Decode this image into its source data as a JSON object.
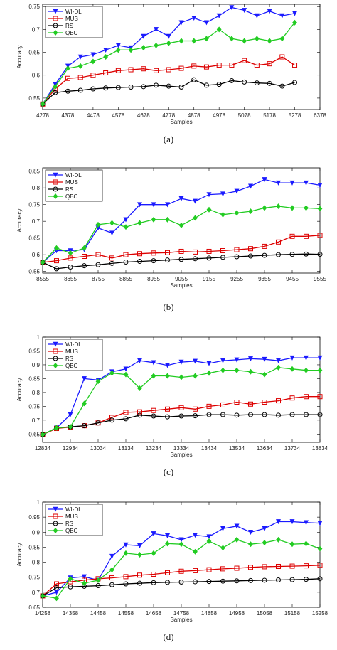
{
  "chart_data": [
    {
      "type": "line",
      "caption": "(a)",
      "xlabel": "Samples",
      "ylabel": "Accuracy",
      "x_ticks": [
        "4278",
        "4378",
        "4478",
        "4578",
        "4678",
        "4778",
        "4878",
        "4978",
        "5078",
        "5178",
        "5278",
        "6378"
      ],
      "y_ticks": [
        "0.55",
        "0.6",
        "0.65",
        "0.7",
        "0.75"
      ],
      "y_tick_values": [
        0.55,
        0.6,
        0.65,
        0.7,
        0.75
      ],
      "ylim": [
        0.525,
        0.755
      ],
      "xlim_index": [
        0,
        11
      ],
      "legend": "top-left",
      "series": [
        {
          "name": "WI-DL",
          "color": "#1a1aff",
          "marker": "triangle",
          "x": [
            0,
            0.5,
            1,
            1.5,
            2,
            2.5,
            3,
            3.5,
            4,
            4.5,
            5,
            5.5,
            6,
            6.5,
            7,
            7.5,
            8,
            8.5,
            9,
            9.5,
            10
          ],
          "values": [
            0.537,
            0.58,
            0.62,
            0.64,
            0.645,
            0.655,
            0.665,
            0.66,
            0.685,
            0.7,
            0.685,
            0.715,
            0.725,
            0.715,
            0.73,
            0.748,
            0.742,
            0.73,
            0.74,
            0.73,
            0.735
          ]
        },
        {
          "name": "MUS",
          "color": "#dd0000",
          "marker": "square",
          "x": [
            0,
            0.5,
            1,
            1.5,
            2,
            2.5,
            3,
            3.5,
            4,
            4.5,
            5,
            5.5,
            6,
            6.5,
            7,
            7.5,
            8,
            8.5,
            9,
            9.5,
            10
          ],
          "values": [
            0.537,
            0.57,
            0.593,
            0.595,
            0.6,
            0.605,
            0.61,
            0.612,
            0.614,
            0.61,
            0.612,
            0.615,
            0.62,
            0.618,
            0.622,
            0.622,
            0.632,
            0.622,
            0.625,
            0.64,
            0.622
          ]
        },
        {
          "name": "RS",
          "color": "#000000",
          "marker": "circle",
          "x": [
            0,
            0.5,
            1,
            1.5,
            2,
            2.5,
            3,
            3.5,
            4,
            4.5,
            5,
            5.5,
            6,
            6.5,
            7,
            7.5,
            8,
            8.5,
            9,
            9.5,
            10
          ],
          "values": [
            0.537,
            0.562,
            0.565,
            0.567,
            0.57,
            0.572,
            0.573,
            0.574,
            0.575,
            0.578,
            0.576,
            0.574,
            0.59,
            0.578,
            0.58,
            0.588,
            0.585,
            0.583,
            0.582,
            0.576,
            0.584
          ]
        },
        {
          "name": "QBC",
          "color": "#22cc22",
          "marker": "diamond",
          "x": [
            0,
            0.5,
            1,
            1.5,
            2,
            2.5,
            3,
            3.5,
            4,
            4.5,
            5,
            5.5,
            6,
            6.5,
            7,
            7.5,
            8,
            8.5,
            9,
            9.5,
            10
          ],
          "values": [
            0.537,
            0.575,
            0.615,
            0.62,
            0.63,
            0.64,
            0.655,
            0.655,
            0.66,
            0.665,
            0.67,
            0.675,
            0.675,
            0.68,
            0.7,
            0.68,
            0.675,
            0.68,
            0.675,
            0.68,
            0.715
          ]
        }
      ]
    },
    {
      "type": "line",
      "caption": "(b)",
      "xlabel": "Samples",
      "ylabel": "Accuracy",
      "x_ticks": [
        "8555",
        "8655",
        "8755",
        "8855",
        "8955",
        "9055",
        "9155",
        "9255",
        "9355",
        "9455",
        "9555"
      ],
      "y_ticks": [
        "0.55",
        "0.6",
        "0.65",
        "0.7",
        "0.75",
        "0.8",
        "0.85"
      ],
      "y_tick_values": [
        0.55,
        0.6,
        0.65,
        0.7,
        0.75,
        0.8,
        0.85
      ],
      "ylim": [
        0.545,
        0.86
      ],
      "xlim_index": [
        0,
        10
      ],
      "legend": "top-left",
      "series": [
        {
          "name": "WI-DL",
          "color": "#1a1aff",
          "marker": "triangle",
          "x": [
            0,
            0.5,
            1,
            1.5,
            2,
            2.5,
            3,
            3.5,
            4,
            4.5,
            5,
            5.5,
            6,
            6.5,
            7,
            7.5,
            8,
            8.5,
            9,
            9.5,
            10
          ],
          "values": [
            0.577,
            0.612,
            0.612,
            0.615,
            0.68,
            0.665,
            0.705,
            0.75,
            0.75,
            0.75,
            0.768,
            0.76,
            0.78,
            0.782,
            0.79,
            0.805,
            0.825,
            0.815,
            0.815,
            0.815,
            0.808
          ]
        },
        {
          "name": "MUS",
          "color": "#dd0000",
          "marker": "square",
          "x": [
            0,
            0.5,
            1,
            1.5,
            2,
            2.5,
            3,
            3.5,
            4,
            4.5,
            5,
            5.5,
            6,
            6.5,
            7,
            7.5,
            8,
            8.5,
            9,
            9.5,
            10
          ],
          "values": [
            0.577,
            0.582,
            0.59,
            0.595,
            0.6,
            0.59,
            0.6,
            0.603,
            0.605,
            0.606,
            0.61,
            0.608,
            0.61,
            0.612,
            0.615,
            0.618,
            0.625,
            0.638,
            0.655,
            0.655,
            0.658
          ]
        },
        {
          "name": "RS",
          "color": "#000000",
          "marker": "circle",
          "x": [
            0,
            0.5,
            1,
            1.5,
            2,
            2.5,
            3,
            3.5,
            4,
            4.5,
            5,
            5.5,
            6,
            6.5,
            7,
            7.5,
            8,
            8.5,
            9,
            9.5,
            10
          ],
          "values": [
            0.577,
            0.558,
            0.563,
            0.567,
            0.57,
            0.574,
            0.578,
            0.58,
            0.582,
            0.584,
            0.586,
            0.588,
            0.59,
            0.592,
            0.594,
            0.596,
            0.598,
            0.6,
            0.601,
            0.602,
            0.601
          ]
        },
        {
          "name": "QBC",
          "color": "#22cc22",
          "marker": "diamond",
          "x": [
            0,
            0.5,
            1,
            1.5,
            2,
            2.5,
            3,
            3.5,
            4,
            4.5,
            5,
            5.5,
            6,
            6.5,
            7,
            7.5,
            8,
            8.5,
            9,
            9.5,
            10
          ],
          "values": [
            0.577,
            0.62,
            0.605,
            0.62,
            0.69,
            0.695,
            0.683,
            0.695,
            0.705,
            0.705,
            0.688,
            0.71,
            0.735,
            0.72,
            0.725,
            0.73,
            0.74,
            0.745,
            0.74,
            0.74,
            0.738
          ]
        }
      ]
    },
    {
      "type": "line",
      "caption": "(c)",
      "xlabel": "Samples",
      "ylabel": "Accuracy",
      "x_ticks": [
        "12834",
        "12934",
        "13034",
        "13134",
        "13234",
        "13334",
        "13434",
        "13534",
        "13634",
        "13734",
        "13834"
      ],
      "y_ticks": [
        "0.65",
        "0.7",
        "0.75",
        "0.8",
        "0.85",
        "0.9",
        "0.95",
        "1"
      ],
      "y_tick_values": [
        0.65,
        0.7,
        0.75,
        0.8,
        0.85,
        0.9,
        0.95,
        1.0
      ],
      "ylim": [
        0.62,
        1.0
      ],
      "xlim_index": [
        0,
        10
      ],
      "legend": "top-left",
      "series": [
        {
          "name": "WI-DL",
          "color": "#1a1aff",
          "marker": "triangle",
          "x": [
            0,
            0.5,
            1,
            1.5,
            2,
            2.5,
            3,
            3.5,
            4,
            4.5,
            5,
            5.5,
            6,
            6.5,
            7,
            7.5,
            8,
            8.5,
            9,
            9.5,
            10
          ],
          "values": [
            0.648,
            0.672,
            0.72,
            0.85,
            0.845,
            0.875,
            0.885,
            0.915,
            0.908,
            0.898,
            0.91,
            0.913,
            0.905,
            0.915,
            0.918,
            0.922,
            0.92,
            0.915,
            0.925,
            0.925,
            0.925
          ]
        },
        {
          "name": "MUS",
          "color": "#dd0000",
          "marker": "square",
          "x": [
            0,
            0.5,
            1,
            1.5,
            2,
            2.5,
            3,
            3.5,
            4,
            4.5,
            5,
            5.5,
            6,
            6.5,
            7,
            7.5,
            8,
            8.5,
            9,
            9.5,
            10
          ],
          "values": [
            0.648,
            0.67,
            0.675,
            0.68,
            0.69,
            0.71,
            0.728,
            0.73,
            0.735,
            0.74,
            0.745,
            0.74,
            0.75,
            0.755,
            0.765,
            0.758,
            0.765,
            0.77,
            0.78,
            0.785,
            0.785
          ]
        },
        {
          "name": "RS",
          "color": "#000000",
          "marker": "circle",
          "x": [
            0,
            0.5,
            1,
            1.5,
            2,
            2.5,
            3,
            3.5,
            4,
            4.5,
            5,
            5.5,
            6,
            6.5,
            7,
            7.5,
            8,
            8.5,
            9,
            9.5,
            10
          ],
          "values": [
            0.648,
            0.672,
            0.676,
            0.68,
            0.69,
            0.7,
            0.705,
            0.718,
            0.715,
            0.712,
            0.715,
            0.716,
            0.72,
            0.72,
            0.718,
            0.72,
            0.72,
            0.718,
            0.72,
            0.72,
            0.72
          ]
        },
        {
          "name": "QBC",
          "color": "#22cc22",
          "marker": "diamond",
          "x": [
            0,
            0.5,
            1,
            1.5,
            2,
            2.5,
            3,
            3.5,
            4,
            4.5,
            5,
            5.5,
            6,
            6.5,
            7,
            7.5,
            8,
            8.5,
            9,
            9.5,
            10
          ],
          "values": [
            0.648,
            0.672,
            0.676,
            0.76,
            0.84,
            0.87,
            0.865,
            0.815,
            0.86,
            0.86,
            0.855,
            0.86,
            0.87,
            0.88,
            0.88,
            0.875,
            0.865,
            0.89,
            0.885,
            0.88,
            0.88
          ]
        }
      ]
    },
    {
      "type": "line",
      "caption": "(d)",
      "xlabel": "Samples",
      "ylabel": "Accuracy",
      "x_ticks": [
        "14258",
        "14358",
        "14458",
        "14558",
        "14658",
        "14758",
        "14858",
        "14958",
        "15058",
        "15158",
        "15258"
      ],
      "y_ticks": [
        "0.65",
        "0.7",
        "0.75",
        "0.8",
        "0.85",
        "0.9",
        "0.95",
        "1"
      ],
      "y_tick_values": [
        0.65,
        0.7,
        0.75,
        0.8,
        0.85,
        0.9,
        0.95,
        1.0
      ],
      "ylim": [
        0.65,
        1.0
      ],
      "xlim_index": [
        0,
        10
      ],
      "legend": "top-left",
      "series": [
        {
          "name": "WI-DL",
          "color": "#1a1aff",
          "marker": "triangle",
          "x": [
            0,
            0.5,
            1,
            1.5,
            2,
            2.5,
            3,
            3.5,
            4,
            4.5,
            5,
            5.5,
            6,
            6.5,
            7,
            7.5,
            8,
            8.5,
            9,
            9.5,
            10
          ],
          "values": [
            0.688,
            0.7,
            0.748,
            0.752,
            0.74,
            0.82,
            0.858,
            0.855,
            0.895,
            0.888,
            0.875,
            0.89,
            0.885,
            0.912,
            0.92,
            0.9,
            0.912,
            0.935,
            0.935,
            0.932,
            0.93
          ]
        },
        {
          "name": "MUS",
          "color": "#dd0000",
          "marker": "square",
          "x": [
            0,
            0.5,
            1,
            1.5,
            2,
            2.5,
            3,
            3.5,
            4,
            4.5,
            5,
            5.5,
            6,
            6.5,
            7,
            7.5,
            8,
            8.5,
            9,
            9.5,
            10
          ],
          "values": [
            0.688,
            0.728,
            0.735,
            0.74,
            0.745,
            0.748,
            0.752,
            0.757,
            0.76,
            0.765,
            0.77,
            0.772,
            0.775,
            0.778,
            0.78,
            0.783,
            0.785,
            0.786,
            0.787,
            0.788,
            0.79
          ]
        },
        {
          "name": "RS",
          "color": "#000000",
          "marker": "circle",
          "x": [
            0,
            0.5,
            1,
            1.5,
            2,
            2.5,
            3,
            3.5,
            4,
            4.5,
            5,
            5.5,
            6,
            6.5,
            7,
            7.5,
            8,
            8.5,
            9,
            9.5,
            10
          ],
          "values": [
            0.688,
            0.715,
            0.718,
            0.72,
            0.722,
            0.725,
            0.728,
            0.73,
            0.732,
            0.733,
            0.734,
            0.735,
            0.736,
            0.737,
            0.738,
            0.739,
            0.74,
            0.741,
            0.742,
            0.743,
            0.745
          ]
        },
        {
          "name": "QBC",
          "color": "#22cc22",
          "marker": "diamond",
          "x": [
            0,
            0.5,
            1,
            1.5,
            2,
            2.5,
            3,
            3.5,
            4,
            4.5,
            5,
            5.5,
            6,
            6.5,
            7,
            7.5,
            8,
            8.5,
            9,
            9.5,
            10
          ],
          "values": [
            0.688,
            0.68,
            0.745,
            0.73,
            0.74,
            0.775,
            0.83,
            0.825,
            0.83,
            0.862,
            0.86,
            0.835,
            0.87,
            0.848,
            0.875,
            0.86,
            0.865,
            0.875,
            0.86,
            0.862,
            0.845
          ]
        }
      ]
    }
  ]
}
